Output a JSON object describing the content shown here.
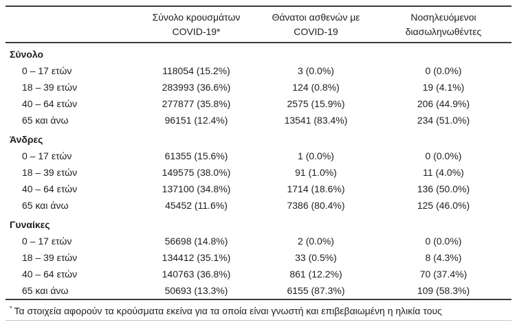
{
  "table": {
    "columns": [
      {
        "line1": "Σύνολο κρουσμάτων",
        "line2": "COVID-19*"
      },
      {
        "line1": "Θάνατοι ασθενών με",
        "line2": "COVID-19"
      },
      {
        "line1": "Νοσηλευόμενοι",
        "line2": "διασωληνωθέντες"
      }
    ],
    "groups": [
      {
        "label": "Σύνολο",
        "rows": [
          {
            "label": "0 – 17 ετών",
            "cases": "118054 (15.2%)",
            "deaths": "3 (0.0%)",
            "intubated": "0 (0.0%)"
          },
          {
            "label": "18 – 39 ετών",
            "cases": "283993 (36.6%)",
            "deaths": "124 (0.8%)",
            "intubated": "19 (4.1%)"
          },
          {
            "label": "40 – 64 ετών",
            "cases": "277877 (35.8%)",
            "deaths": "2575 (15.9%)",
            "intubated": "206 (44.9%)"
          },
          {
            "label": "65 και άνω",
            "cases": "96151 (12.4%)",
            "deaths": "13541 (83.4%)",
            "intubated": "234 (51.0%)"
          }
        ]
      },
      {
        "label": "Άνδρες",
        "rows": [
          {
            "label": "0 – 17 ετών",
            "cases": "61355 (15.6%)",
            "deaths": "1 (0.0%)",
            "intubated": "0 (0.0%)"
          },
          {
            "label": "18 – 39 ετών",
            "cases": "149575 (38.0%)",
            "deaths": "91 (1.0%)",
            "intubated": "11 (4.0%)"
          },
          {
            "label": "40 – 64 ετών",
            "cases": "137100 (34.8%)",
            "deaths": "1714 (18.6%)",
            "intubated": "136 (50.0%)"
          },
          {
            "label": "65 και άνω",
            "cases": "45452 (11.6%)",
            "deaths": "7386 (80.4%)",
            "intubated": "125 (46.0%)"
          }
        ]
      },
      {
        "label": "Γυναίκες",
        "rows": [
          {
            "label": "0 – 17 ετών",
            "cases": "56698 (14.8%)",
            "deaths": "2 (0.0%)",
            "intubated": "0 (0.0%)"
          },
          {
            "label": "18 – 39 ετών",
            "cases": "134412 (35.1%)",
            "deaths": "33 (0.5%)",
            "intubated": "8 (4.3%)"
          },
          {
            "label": "40 – 64 ετών",
            "cases": "140763 (36.8%)",
            "deaths": "861 (12.2%)",
            "intubated": "70 (37.4%)"
          },
          {
            "label": "65 και άνω",
            "cases": "50693 (13.3%)",
            "deaths": "6155 (87.3%)",
            "intubated": "109 (58.3%)"
          }
        ]
      }
    ],
    "footnote": {
      "marker": "*",
      "text": "Τα στοιχεία αφορούν τα κρούσματα εκείνα για τα οποία είναι γνωστή και επιβεβαιωμένη η ηλικία τους"
    }
  }
}
